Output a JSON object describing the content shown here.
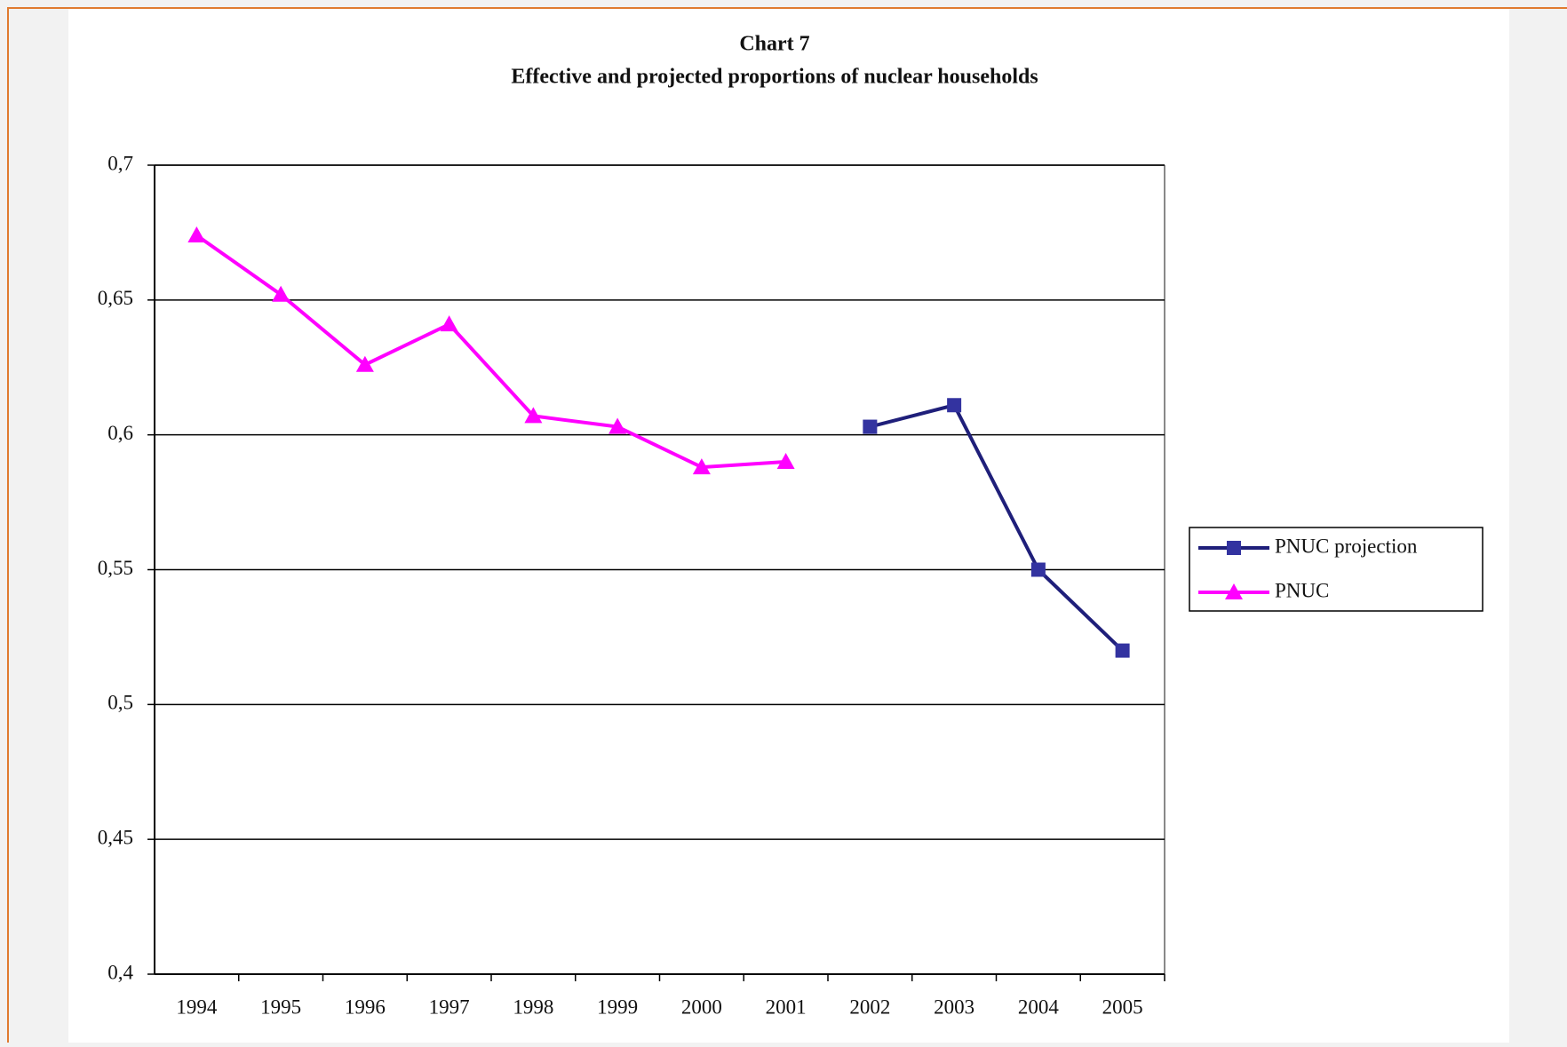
{
  "chart_data": {
    "type": "line",
    "title": "Chart 7",
    "subtitle": "Effective and projected proportions of nuclear households",
    "categories": [
      "1994",
      "1995",
      "1996",
      "1997",
      "1998",
      "1999",
      "2000",
      "2001",
      "2002",
      "2003",
      "2004",
      "2005"
    ],
    "series": [
      {
        "name": "PNUC projection",
        "color": "#1f1f7a",
        "marker": "square",
        "marker_color": "#3333a0",
        "values": [
          null,
          null,
          null,
          null,
          null,
          null,
          null,
          null,
          0.603,
          0.611,
          0.55,
          0.52
        ]
      },
      {
        "name": "PNUC",
        "color": "#ff00ff",
        "marker": "triangle",
        "marker_color": "#ff00ff",
        "values": [
          0.674,
          0.652,
          0.626,
          0.641,
          0.607,
          0.603,
          0.588,
          0.59,
          null,
          null,
          null,
          null
        ]
      }
    ],
    "ylim": [
      0.4,
      0.7
    ],
    "yticks": [
      {
        "value": 0.4,
        "label": "0,4"
      },
      {
        "value": 0.45,
        "label": "0,45"
      },
      {
        "value": 0.5,
        "label": "0,5"
      },
      {
        "value": 0.55,
        "label": "0,55"
      },
      {
        "value": 0.6,
        "label": "0,6"
      },
      {
        "value": 0.65,
        "label": "0,65"
      },
      {
        "value": 0.7,
        "label": "0,7"
      }
    ],
    "grid": true,
    "legend": "right"
  }
}
